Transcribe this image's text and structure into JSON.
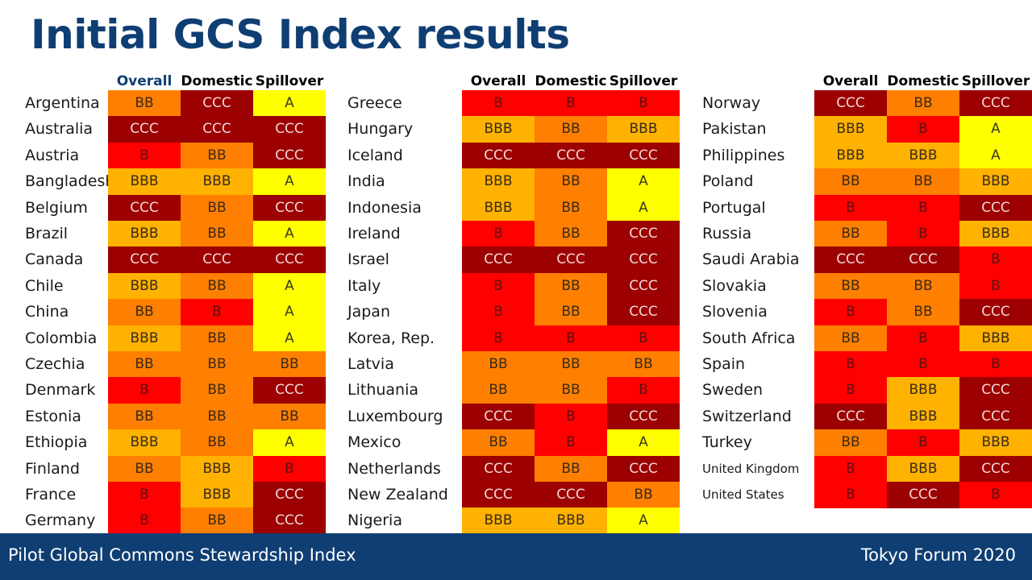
{
  "title": "Initial GCS Index results",
  "headers": {
    "overall": "Overall",
    "domestic": "Domestic",
    "spillover": "Spillover"
  },
  "rating_colors": {
    "CCC": "#9c0000",
    "B": "#ff0000",
    "BB": "#ff7f00",
    "BBB": "#ffb200",
    "A": "#ffff00"
  },
  "columns": [
    {
      "rows": [
        {
          "country": "Argentina",
          "overall": "BB",
          "domestic": "CCC",
          "spillover": "A"
        },
        {
          "country": "Australia",
          "overall": "CCC",
          "domestic": "CCC",
          "spillover": "CCC"
        },
        {
          "country": "Austria",
          "overall": "B",
          "domestic": "BB",
          "spillover": "CCC"
        },
        {
          "country": "Bangladesh",
          "overall": "BBB",
          "domestic": "BBB",
          "spillover": "A"
        },
        {
          "country": "Belgium",
          "overall": "CCC",
          "domestic": "BB",
          "spillover": "CCC"
        },
        {
          "country": "Brazil",
          "overall": "BBB",
          "domestic": "BB",
          "spillover": "A"
        },
        {
          "country": "Canada",
          "overall": "CCC",
          "domestic": "CCC",
          "spillover": "CCC"
        },
        {
          "country": "Chile",
          "overall": "BBB",
          "domestic": "BB",
          "spillover": "A"
        },
        {
          "country": "China",
          "overall": "BB",
          "domestic": "B",
          "spillover": "A"
        },
        {
          "country": "Colombia",
          "overall": "BBB",
          "domestic": "BB",
          "spillover": "A"
        },
        {
          "country": "Czechia",
          "overall": "BB",
          "domestic": "BB",
          "spillover": "BB"
        },
        {
          "country": "Denmark",
          "overall": "B",
          "domestic": "BB",
          "spillover": "CCC"
        },
        {
          "country": "Estonia",
          "overall": "BB",
          "domestic": "BB",
          "spillover": "BB"
        },
        {
          "country": "Ethiopia",
          "overall": "BBB",
          "domestic": "BB",
          "spillover": "A"
        },
        {
          "country": "Finland",
          "overall": "BB",
          "domestic": "BBB",
          "spillover": "B"
        },
        {
          "country": "France",
          "overall": "B",
          "domestic": "BBB",
          "spillover": "CCC"
        },
        {
          "country": "Germany",
          "overall": "B",
          "domestic": "BB",
          "spillover": "CCC"
        }
      ]
    },
    {
      "rows": [
        {
          "country": "Greece",
          "overall": "B",
          "domestic": "B",
          "spillover": "B"
        },
        {
          "country": "Hungary",
          "overall": "BBB",
          "domestic": "BB",
          "spillover": "BBB"
        },
        {
          "country": "Iceland",
          "overall": "CCC",
          "domestic": "CCC",
          "spillover": "CCC"
        },
        {
          "country": "India",
          "overall": "BBB",
          "domestic": "BB",
          "spillover": "A"
        },
        {
          "country": "Indonesia",
          "overall": "BBB",
          "domestic": "BB",
          "spillover": "A"
        },
        {
          "country": "Ireland",
          "overall": "B",
          "domestic": "BB",
          "spillover": "CCC"
        },
        {
          "country": "Israel",
          "overall": "CCC",
          "domestic": "CCC",
          "spillover": "CCC"
        },
        {
          "country": "Italy",
          "overall": "B",
          "domestic": "BB",
          "spillover": "CCC"
        },
        {
          "country": "Japan",
          "overall": "B",
          "domestic": "BB",
          "spillover": "CCC"
        },
        {
          "country": "Korea, Rep.",
          "overall": "B",
          "domestic": "B",
          "spillover": "B"
        },
        {
          "country": "Latvia",
          "overall": "BB",
          "domestic": "BB",
          "spillover": "BB"
        },
        {
          "country": "Lithuania",
          "overall": "BB",
          "domestic": "BB",
          "spillover": "B"
        },
        {
          "country": "Luxembourg",
          "overall": "CCC",
          "domestic": "B",
          "spillover": "CCC"
        },
        {
          "country": "Mexico",
          "overall": "BB",
          "domestic": "B",
          "spillover": "A"
        },
        {
          "country": "Netherlands",
          "overall": "CCC",
          "domestic": "BB",
          "spillover": "CCC"
        },
        {
          "country": "New Zealand",
          "overall": "CCC",
          "domestic": "CCC",
          "spillover": "BB"
        },
        {
          "country": "Nigeria",
          "overall": "BBB",
          "domestic": "BBB",
          "spillover": "A"
        }
      ]
    },
    {
      "rows": [
        {
          "country": "Norway",
          "overall": "CCC",
          "domestic": "BB",
          "spillover": "CCC"
        },
        {
          "country": "Pakistan",
          "overall": "BBB",
          "domestic": "B",
          "spillover": "A"
        },
        {
          "country": "Philippines",
          "overall": "BBB",
          "domestic": "BBB",
          "spillover": "A"
        },
        {
          "country": "Poland",
          "overall": "BB",
          "domestic": "BB",
          "spillover": "BBB"
        },
        {
          "country": "Portugal",
          "overall": "B",
          "domestic": "B",
          "spillover": "CCC"
        },
        {
          "country": "Russia",
          "overall": "BB",
          "domestic": "B",
          "spillover": "BBB"
        },
        {
          "country": "Saudi Arabia",
          "overall": "CCC",
          "domestic": "CCC",
          "spillover": "B"
        },
        {
          "country": "Slovakia",
          "overall": "BB",
          "domestic": "BB",
          "spillover": "B"
        },
        {
          "country": "Slovenia",
          "overall": "B",
          "domestic": "BB",
          "spillover": "CCC"
        },
        {
          "country": "South Africa",
          "overall": "BB",
          "domestic": "B",
          "spillover": "BBB"
        },
        {
          "country": "Spain",
          "overall": "B",
          "domestic": "B",
          "spillover": "B"
        },
        {
          "country": "Sweden",
          "overall": "B",
          "domestic": "BBB",
          "spillover": "CCC"
        },
        {
          "country": "Switzerland",
          "overall": "CCC",
          "domestic": "BBB",
          "spillover": "CCC"
        },
        {
          "country": "Turkey",
          "overall": "BB",
          "domestic": "B",
          "spillover": "BBB"
        },
        {
          "country": "United Kingdom",
          "overall": "B",
          "domestic": "BBB",
          "spillover": "CCC"
        },
        {
          "country": "United States",
          "overall": "B",
          "domestic": "CCC",
          "spillover": "B"
        }
      ]
    }
  ],
  "footer": {
    "left": "Pilot Global Commons Stewardship Index",
    "right": "Tokyo Forum 2020"
  }
}
